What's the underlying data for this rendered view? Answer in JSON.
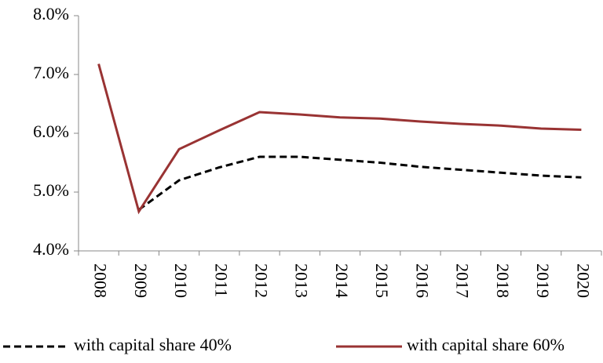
{
  "chart_data": {
    "type": "line",
    "categories": [
      "2008",
      "2009",
      "2010",
      "2011",
      "2012",
      "2013",
      "2014",
      "2015",
      "2016",
      "2017",
      "2018",
      "2019",
      "2020"
    ],
    "series": [
      {
        "name": "with capital share 40%",
        "color": "#000000",
        "style": "dashed",
        "values": [
          null,
          4.7,
          5.2,
          5.42,
          5.6,
          5.6,
          5.55,
          5.5,
          5.43,
          5.38,
          5.33,
          5.28,
          5.25
        ]
      },
      {
        "name": "with capital share 60%",
        "color": "#993333",
        "style": "solid",
        "values": [
          7.18,
          4.67,
          5.73,
          6.05,
          6.36,
          6.32,
          6.27,
          6.25,
          6.2,
          6.16,
          6.13,
          6.08,
          6.06
        ]
      }
    ],
    "ylim": [
      4,
      8
    ],
    "yticks": [
      {
        "value": 4,
        "label": "4.0%"
      },
      {
        "value": 5,
        "label": "5.0%"
      },
      {
        "value": 6,
        "label": "6.0%"
      },
      {
        "value": 7,
        "label": "7.0%"
      },
      {
        "value": 8,
        "label": "8.0%"
      }
    ],
    "grid": false,
    "legend": "bottom"
  }
}
